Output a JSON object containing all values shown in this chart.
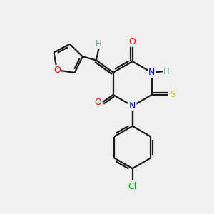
{
  "background_color": "#f0f0f0",
  "bond_color": "#1a1a1a",
  "atom_colors": {
    "O": "#ff0000",
    "N": "#0000cc",
    "S": "#cccc00",
    "Cl": "#00aa00",
    "H": "#6fa0a0",
    "C": "#1a1a1a"
  },
  "figsize": [
    3.0,
    3.0
  ],
  "dpi": 100,
  "lw": 1.6,
  "fs": 8.5
}
